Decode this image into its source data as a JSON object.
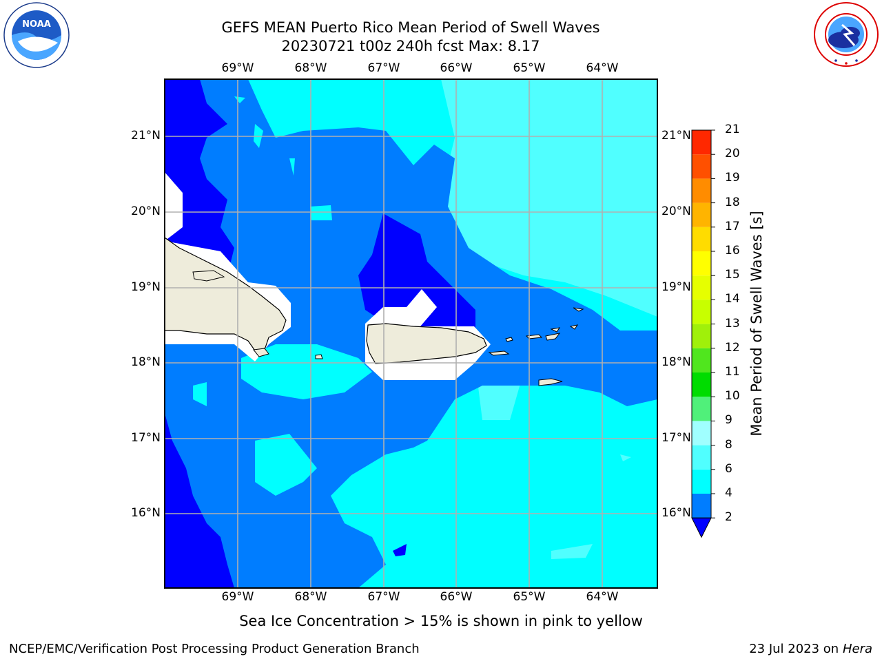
{
  "header": {
    "title_line1": "GEFS MEAN Puerto Rico Mean Period of Swell Waves",
    "title_line2": "20230721 t00z 240h fcst   Max: 8.17"
  },
  "map": {
    "lon_labels": [
      "69°W",
      "68°W",
      "67°W",
      "66°W",
      "65°W",
      "64°W"
    ],
    "lat_labels": [
      "21°N",
      "20°N",
      "19°N",
      "18°N",
      "17°N",
      "16°N"
    ],
    "land_color": "#eeecdb",
    "grid_color": "#b0b0b0"
  },
  "colorbar": {
    "title": "Mean Period of Swell Waves [s]",
    "levels": [
      "2",
      "4",
      "6",
      "8",
      "9",
      "10",
      "11",
      "12",
      "13",
      "14",
      "15",
      "16",
      "17",
      "18",
      "19",
      "20",
      "21"
    ],
    "colors": [
      "#007dff",
      "#00ffff",
      "#50ffff",
      "#a0ffff",
      "#50f07a",
      "#00dc00",
      "#50e61e",
      "#a0f00a",
      "#c8ff00",
      "#e6ff00",
      "#ffff00",
      "#ffdc00",
      "#ffb400",
      "#ff8c00",
      "#ff5000",
      "#ff2800",
      "#ff0000"
    ],
    "under_color": "#0000ff"
  },
  "footer": {
    "note": "Sea Ice Concentration > 15% is shown in pink to yellow",
    "credit": "NCEP/EMC/Verification Post Processing Product Generation Branch",
    "date": "23 Jul 2023 on",
    "host": "Hera"
  },
  "logos": {
    "left": "NOAA",
    "right_ring": "NATIONAL WEATHER SERVICE"
  }
}
